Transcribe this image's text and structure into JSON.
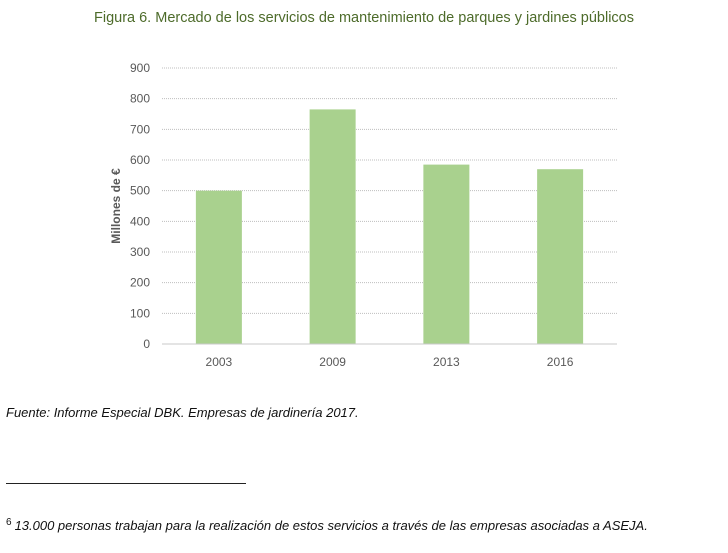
{
  "figure": {
    "title": "Figura 6. Mercado de los servicios de mantenimiento de parques y jardines públicos"
  },
  "chart_data": {
    "type": "bar",
    "title": "Figura 6. Mercado de los servicios de mantenimiento de parques y jardines públicos",
    "categories": [
      "2003",
      "2009",
      "2013",
      "2016"
    ],
    "values": [
      500,
      765,
      585,
      570
    ],
    "xlabel": "",
    "ylabel": "Millones de €",
    "ylim": [
      0,
      900
    ],
    "yticks": [
      0,
      100,
      200,
      300,
      400,
      500,
      600,
      700,
      800,
      900
    ],
    "grid": true,
    "bar_color": "#a9d18e"
  },
  "source": {
    "text": "Fuente: Informe Especial DBK. Empresas de jardinería 2017."
  },
  "footnote": {
    "number": "6",
    "text": "13.000 personas trabajan para la realización de estos servicios a través de las empresas asociadas a ASEJA."
  }
}
